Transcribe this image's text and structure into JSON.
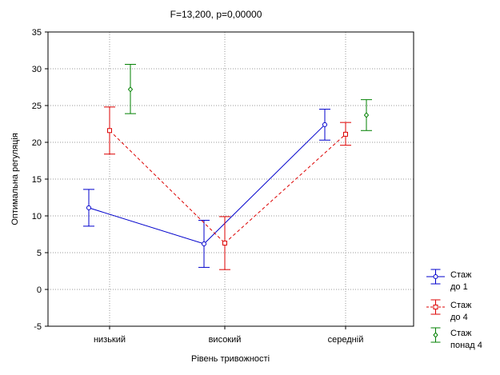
{
  "chart_data": {
    "type": "line",
    "title": "F=13,200, p=0,00000",
    "xlabel": "Рівень тривожності",
    "ylabel": "Оптимальна регуляція",
    "categories": [
      "низький",
      "високий",
      "середній"
    ],
    "ylim": [
      -5,
      35
    ],
    "yticks": [
      "-5",
      "0",
      "5",
      "10",
      "15",
      "20",
      "25",
      "30",
      "35"
    ],
    "grid": true,
    "legend_position": "bottom-right",
    "series": [
      {
        "name_lines": [
          "Стаж",
          "до 1"
        ],
        "color": "#0000cc",
        "line_style": "solid",
        "marker": "circle",
        "values": [
          11.1,
          6.2,
          22.4
        ],
        "ci_low": [
          8.6,
          3.0,
          20.3
        ],
        "ci_high": [
          13.6,
          9.4,
          24.5
        ]
      },
      {
        "name_lines": [
          "Стаж",
          "до 4"
        ],
        "color": "#dd0000",
        "line_style": "dashed",
        "marker": "square",
        "values": [
          21.6,
          6.3,
          21.1
        ],
        "ci_low": [
          18.4,
          2.7,
          19.6
        ],
        "ci_high": [
          24.8,
          9.9,
          22.7
        ]
      },
      {
        "name_lines": [
          "Стаж",
          "понад 4"
        ],
        "color": "#008000",
        "line_style": "none",
        "marker": "diamond",
        "values": [
          27.2,
          null,
          23.7
        ],
        "ci_low": [
          23.9,
          null,
          21.6
        ],
        "ci_high": [
          30.6,
          null,
          25.8
        ]
      }
    ]
  }
}
